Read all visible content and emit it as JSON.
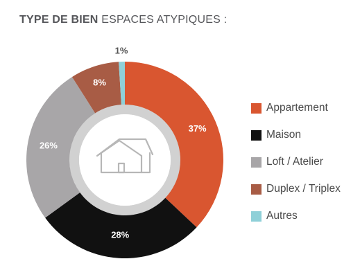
{
  "header": {
    "title_bold": "TYPE DE BIEN",
    "title_rest": "ESPACES ATYPIQUES :"
  },
  "icons": {
    "center": "house-icon"
  },
  "chart_data": {
    "type": "pie",
    "variant": "donut",
    "title": "TYPE DE BIEN ESPACES ATYPIQUES :",
    "legend_position": "right",
    "slices": [
      {
        "name": "Appartement",
        "value": 37,
        "label": "37%",
        "color": "#d95630",
        "label_color": "#ffffff"
      },
      {
        "name": "Maison",
        "value": 28,
        "label": "28%",
        "color": "#111111",
        "label_color": "#ffffff"
      },
      {
        "name": "Loft / Atelier",
        "value": 26,
        "label": "26%",
        "color": "#a8a6a8",
        "label_color": "#ffffff"
      },
      {
        "name": "Duplex / Triplex",
        "value": 8,
        "label": "8%",
        "color": "#a85c45",
        "label_color": "#ffffff"
      },
      {
        "name": "Autres",
        "value": 1,
        "label": "1%",
        "color": "#8fd0d8",
        "label_color": "#555555"
      }
    ]
  }
}
